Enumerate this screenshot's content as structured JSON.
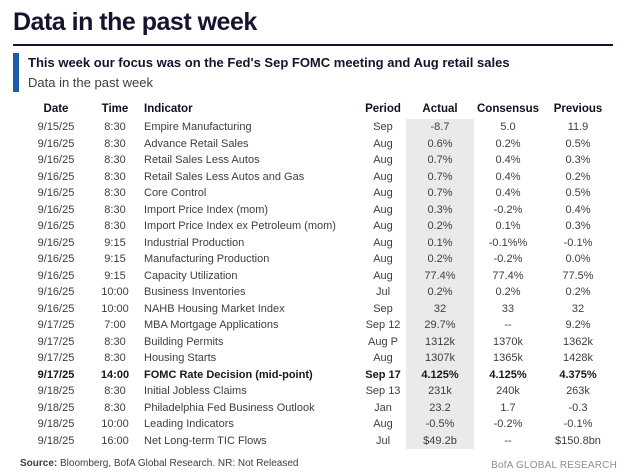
{
  "page_title": "Data in the past week",
  "callout": {
    "headline": "This week our focus was on the Fed's Sep FOMC meeting and Aug retail sales",
    "subtitle": "Data in the past week",
    "accent_color": "#1d5cac"
  },
  "table": {
    "headers": [
      "Date",
      "Time",
      "Indicator",
      "Period",
      "Actual",
      "Consensus",
      "Previous"
    ],
    "rows": [
      {
        "date": "9/15/25",
        "time": "8:30",
        "indicator": "Empire Manufacturing",
        "period": "Sep",
        "actual": "-8.7",
        "consensus": "5.0",
        "previous": "11.9",
        "bold": false
      },
      {
        "date": "9/16/25",
        "time": "8:30",
        "indicator": "Advance Retail Sales",
        "period": "Aug",
        "actual": "0.6%",
        "consensus": "0.2%",
        "previous": "0.5%",
        "bold": false
      },
      {
        "date": "9/16/25",
        "time": "8:30",
        "indicator": "Retail Sales Less Autos",
        "period": "Aug",
        "actual": "0.7%",
        "consensus": "0.4%",
        "previous": "0.3%",
        "bold": false
      },
      {
        "date": "9/16/25",
        "time": "8:30",
        "indicator": "Retail Sales Less Autos and Gas",
        "period": "Aug",
        "actual": "0.7%",
        "consensus": "0.4%",
        "previous": "0.2%",
        "bold": false
      },
      {
        "date": "9/16/25",
        "time": "8:30",
        "indicator": "Core Control",
        "period": "Aug",
        "actual": "0.7%",
        "consensus": "0.4%",
        "previous": "0.5%",
        "bold": false
      },
      {
        "date": "9/16/25",
        "time": "8:30",
        "indicator": "Import Price Index (mom)",
        "period": "Aug",
        "actual": "0.3%",
        "consensus": "-0.2%",
        "previous": "0.4%",
        "bold": false
      },
      {
        "date": "9/16/25",
        "time": "8:30",
        "indicator": "Import Price Index ex Petroleum (mom)",
        "period": "Aug",
        "actual": "0.2%",
        "consensus": "0.1%",
        "previous": "0.3%",
        "bold": false
      },
      {
        "date": "9/16/25",
        "time": "9:15",
        "indicator": "Industrial Production",
        "period": "Aug",
        "actual": "0.1%",
        "consensus": "-0.1%%",
        "previous": "-0.1%",
        "bold": false
      },
      {
        "date": "9/16/25",
        "time": "9:15",
        "indicator": "Manufacturing Production",
        "period": "Aug",
        "actual": "0.2%",
        "consensus": "-0.2%",
        "previous": "0.0%",
        "bold": false
      },
      {
        "date": "9/16/25",
        "time": "9:15",
        "indicator": "Capacity Utilization",
        "period": "Aug",
        "actual": "77.4%",
        "consensus": "77.4%",
        "previous": "77.5%",
        "bold": false
      },
      {
        "date": "9/16/25",
        "time": "10:00",
        "indicator": "Business Inventories",
        "period": "Jul",
        "actual": "0.2%",
        "consensus": "0.2%",
        "previous": "0.2%",
        "bold": false
      },
      {
        "date": "9/16/25",
        "time": "10:00",
        "indicator": "NAHB Housing Market Index",
        "period": "Sep",
        "actual": "32",
        "consensus": "33",
        "previous": "32",
        "bold": false
      },
      {
        "date": "9/17/25",
        "time": "7:00",
        "indicator": "MBA Mortgage Applications",
        "period": "Sep 12",
        "actual": "29.7%",
        "consensus": "--",
        "previous": "9.2%",
        "bold": false
      },
      {
        "date": "9/17/25",
        "time": "8:30",
        "indicator": "Building Permits",
        "period": "Aug P",
        "actual": "1312k",
        "consensus": "1370k",
        "previous": "1362k",
        "bold": false
      },
      {
        "date": "9/17/25",
        "time": "8:30",
        "indicator": "Housing Starts",
        "period": "Aug",
        "actual": "1307k",
        "consensus": "1365k",
        "previous": "1428k",
        "bold": false
      },
      {
        "date": "9/17/25",
        "time": "14:00",
        "indicator": "FOMC Rate Decision (mid-point)",
        "period": "Sep 17",
        "actual": "4.125%",
        "consensus": "4.125%",
        "previous": "4.375%",
        "bold": true
      },
      {
        "date": "9/18/25",
        "time": "8:30",
        "indicator": "Initial Jobless Claims",
        "period": "Sep 13",
        "actual": "231k",
        "consensus": "240k",
        "previous": "263k",
        "bold": false
      },
      {
        "date": "9/18/25",
        "time": "8:30",
        "indicator": "Philadelphia Fed Business Outlook",
        "period": "Jan",
        "actual": "23.2",
        "consensus": "1.7",
        "previous": "-0.3",
        "bold": false
      },
      {
        "date": "9/18/25",
        "time": "10:00",
        "indicator": "Leading Indicators",
        "period": "Aug",
        "actual": "-0.5%",
        "consensus": "-0.2%",
        "previous": "-0.1%",
        "bold": false
      },
      {
        "date": "9/18/25",
        "time": "16:00",
        "indicator": "Net Long-term TIC Flows",
        "period": "Jul",
        "actual": "$49.2b",
        "consensus": "--",
        "previous": "$150.8bn",
        "bold": false
      }
    ]
  },
  "footer": {
    "source_label": "Source:",
    "source_text": " Bloomberg, BofA Global Research. NR: Not Released",
    "branding": "BofA GLOBAL RESEARCH"
  },
  "colors": {
    "title_navy": "#15142f",
    "accent_blue": "#1d5cac",
    "actual_column_bg": "#eaeaea",
    "body_text": "#3e3e3e",
    "branding_gray": "#8e8e8e"
  }
}
